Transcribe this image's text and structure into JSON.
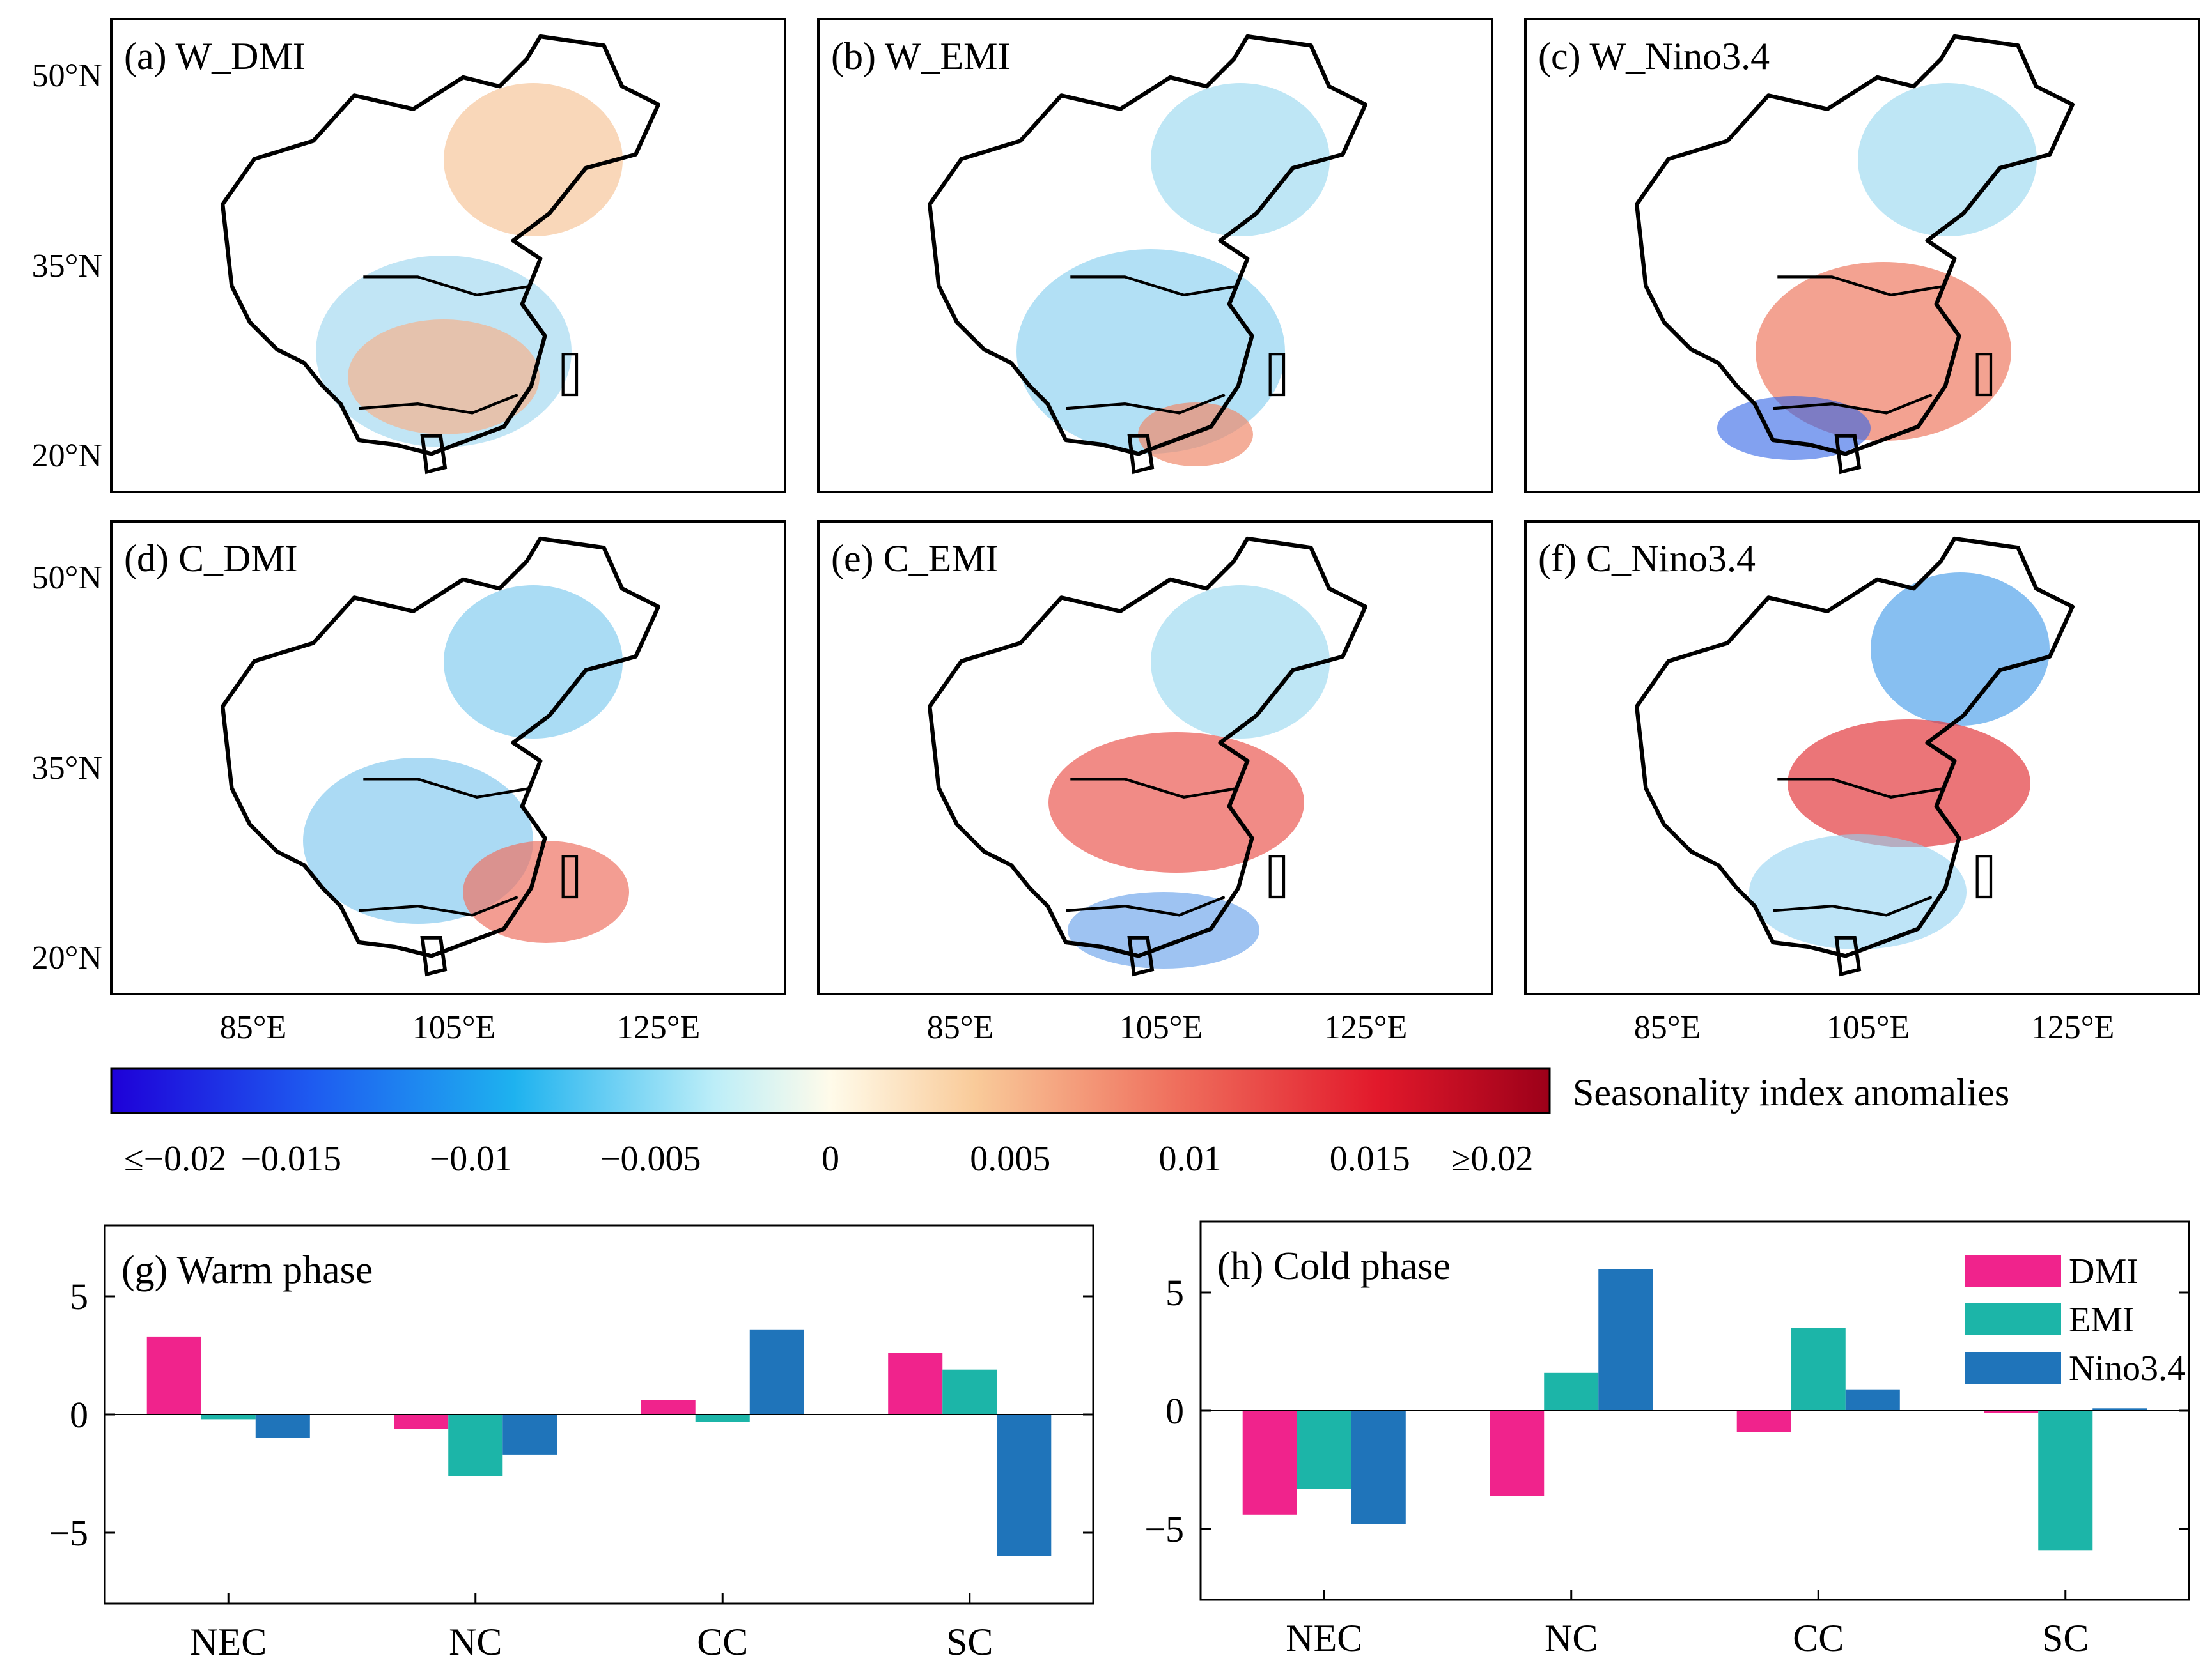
{
  "colors": {
    "axis": "#000000",
    "DMI": "#F0238C",
    "EMI": "#1CB5A8",
    "Nino3.4": "#1F74BA",
    "neg_max": "#1E00D8",
    "pos_max": "#9C0019"
  },
  "maps": {
    "lat_ticks": [
      "50°N",
      "35°N",
      "20°N"
    ],
    "lon_ticks": [
      "85°E",
      "105°E",
      "125°E"
    ],
    "panels": [
      {
        "label": "(a) W_DMI",
        "pattern": "red-north-dominant"
      },
      {
        "label": "(b) W_EMI",
        "pattern": "mostly-blue"
      },
      {
        "label": "(c) W_Nino3.4",
        "pattern": "red-central"
      },
      {
        "label": "(d) C_DMI",
        "pattern": "blue-north-red-southeast"
      },
      {
        "label": "(e) C_EMI",
        "pattern": "red-north-central"
      },
      {
        "label": "(f) C_Nino3.4",
        "pattern": "red-north-central-strong"
      }
    ]
  },
  "colorbar": {
    "title": "Seasonality index anomalies",
    "tick_labels": [
      "≤−0.02",
      "−0.015",
      "−0.01",
      "−0.005",
      "0",
      "0.005",
      "0.01",
      "0.015",
      "≥0.02"
    ],
    "range": [
      -0.02,
      0.02
    ]
  },
  "chart_data": [
    {
      "type": "bar",
      "title": "(g) Warm phase",
      "categories": [
        "NEC",
        "NC",
        "CC",
        "SC"
      ],
      "series": [
        {
          "name": "DMI",
          "values": [
            3.3,
            -0.6,
            0.6,
            2.6
          ]
        },
        {
          "name": "EMI",
          "values": [
            -0.2,
            -2.6,
            -0.3,
            1.9
          ]
        },
        {
          "name": "Nino3.4",
          "values": [
            -1.0,
            -1.7,
            3.6,
            -6.0
          ]
        }
      ],
      "ylim": [
        -8,
        8
      ],
      "yticks": [
        5,
        0,
        -5
      ],
      "ytick_labels": [
        "5",
        "0",
        "−5"
      ]
    },
    {
      "type": "bar",
      "title": "(h) Cold phase",
      "categories": [
        "NEC",
        "NC",
        "CC",
        "SC"
      ],
      "series": [
        {
          "name": "DMI",
          "values": [
            -4.4,
            -3.6,
            -0.9,
            -0.1
          ]
        },
        {
          "name": "EMI",
          "values": [
            -3.3,
            1.6,
            3.5,
            -5.9
          ]
        },
        {
          "name": "Nino3.4",
          "values": [
            -4.8,
            6.0,
            0.9,
            0.1
          ]
        }
      ],
      "ylim": [
        -8,
        8
      ],
      "yticks": [
        5,
        0,
        -5
      ],
      "ytick_labels": [
        "5",
        "0",
        "−5"
      ],
      "legend": "top-right",
      "legend_entries": [
        "DMI",
        "EMI",
        "Nino3.4"
      ]
    }
  ]
}
